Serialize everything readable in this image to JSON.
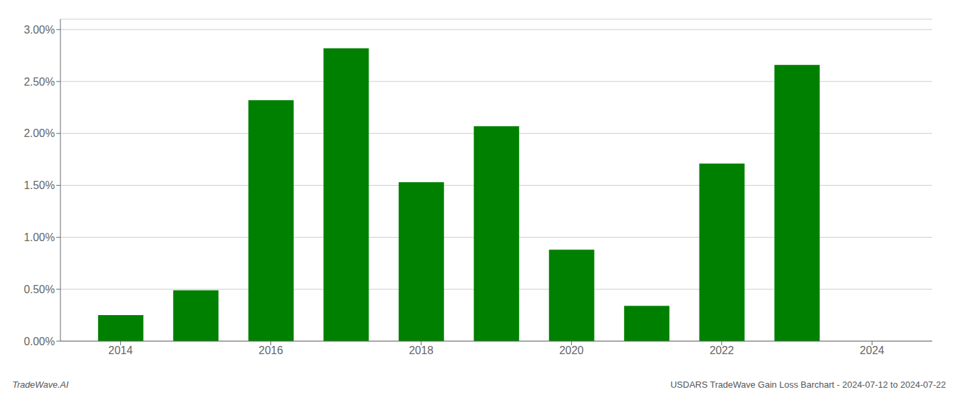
{
  "chart_data": {
    "type": "bar",
    "x": [
      2014,
      2015,
      2016,
      2017,
      2018,
      2019,
      2020,
      2021,
      2022,
      2023
    ],
    "values": [
      0.0025,
      0.0049,
      0.0232,
      0.0282,
      0.0153,
      0.0207,
      0.0088,
      0.0034,
      0.0171,
      0.0266
    ],
    "color": "#008000",
    "xlim": [
      2013.2,
      2024.8
    ],
    "xticks": [
      2014,
      2016,
      2018,
      2020,
      2022,
      2024
    ],
    "ylim": [
      0,
      0.031
    ],
    "yticks": [
      {
        "value": 0.0,
        "label": "0.00%"
      },
      {
        "value": 0.005,
        "label": "0.50%"
      },
      {
        "value": 0.01,
        "label": "1.00%"
      },
      {
        "value": 0.015,
        "label": "1.50%"
      },
      {
        "value": 0.02,
        "label": "2.00%"
      },
      {
        "value": 0.025,
        "label": "2.50%"
      },
      {
        "value": 0.03,
        "label": "3.00%"
      }
    ],
    "grid": true,
    "annotations": [
      "TradeWave.AI",
      "USDARS TradeWave Gain Loss Barchart - 2024-07-12 to 2024-07-22"
    ]
  }
}
